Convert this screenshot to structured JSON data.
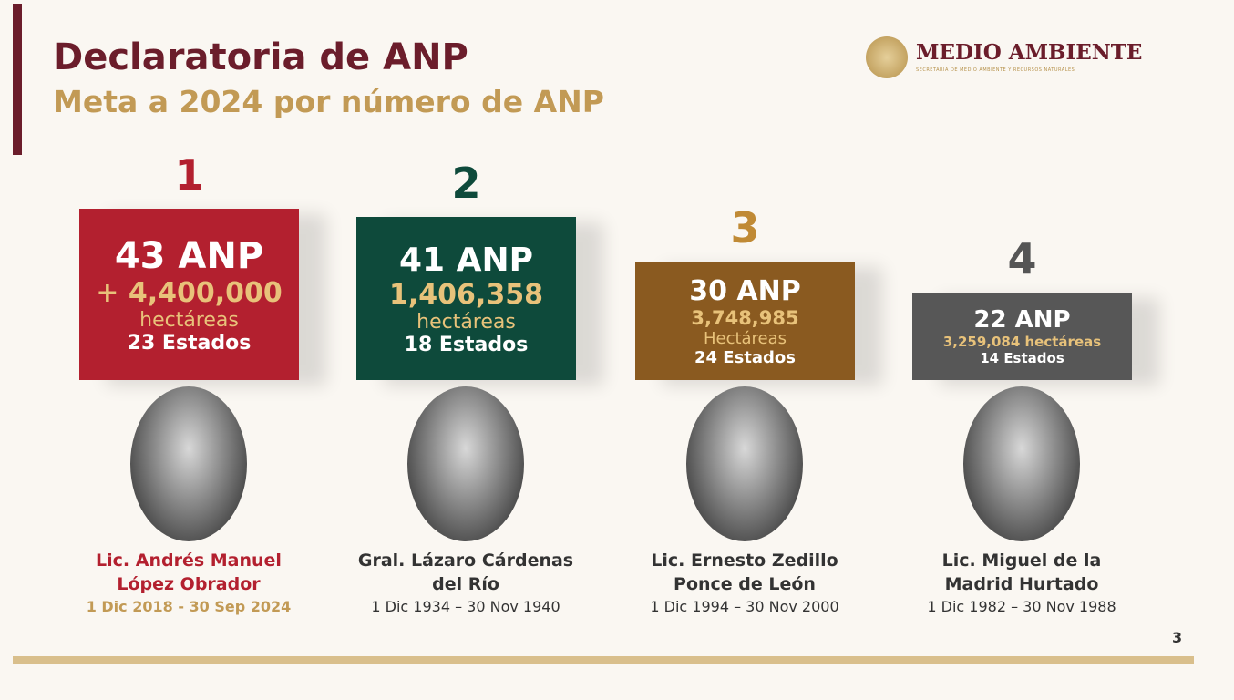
{
  "header": {
    "title": "Declaratoria de ANP",
    "subtitle": "Meta a 2024 por número de ANP",
    "logo": "MEDIO AMBIENTE",
    "logo_subtitle": "SECRETARÍA DE MEDIO AMBIENTE Y RECURSOS NATURALES"
  },
  "cards": [
    {
      "rank": "1",
      "anp": "43 ANP",
      "area": "+ 4,400,000",
      "unit": "hectáreas",
      "states": "23 Estados",
      "name": [
        "Lic. Andrés Manuel",
        "López Obrador"
      ],
      "dates": "1 Dic 2018 - 30 Sep 2024"
    },
    {
      "rank": "2",
      "anp": "41 ANP",
      "area": "1,406,358",
      "unit": "hectáreas",
      "states": "18 Estados",
      "name": [
        "Gral. Lázaro Cárdenas",
        "del Río"
      ],
      "dates": "1 Dic 1934 – 30 Nov 1940"
    },
    {
      "rank": "3",
      "anp": "30 ANP",
      "area": "3,748,985",
      "unit": "Hectáreas",
      "states": "24 Estados",
      "name": [
        "Lic. Ernesto Zedillo",
        "Ponce de León"
      ],
      "dates": "1 Dic 1994 – 30 Nov 2000"
    },
    {
      "rank": "4",
      "anp": "22 ANP",
      "area": "3,259,084 hectáreas",
      "states": "14 Estados",
      "name": [
        "Lic. Miguel de la",
        "Madrid Hurtado"
      ],
      "dates": "1 Dic 1982 – 30 Nov 1988"
    }
  ],
  "page_number": "3"
}
